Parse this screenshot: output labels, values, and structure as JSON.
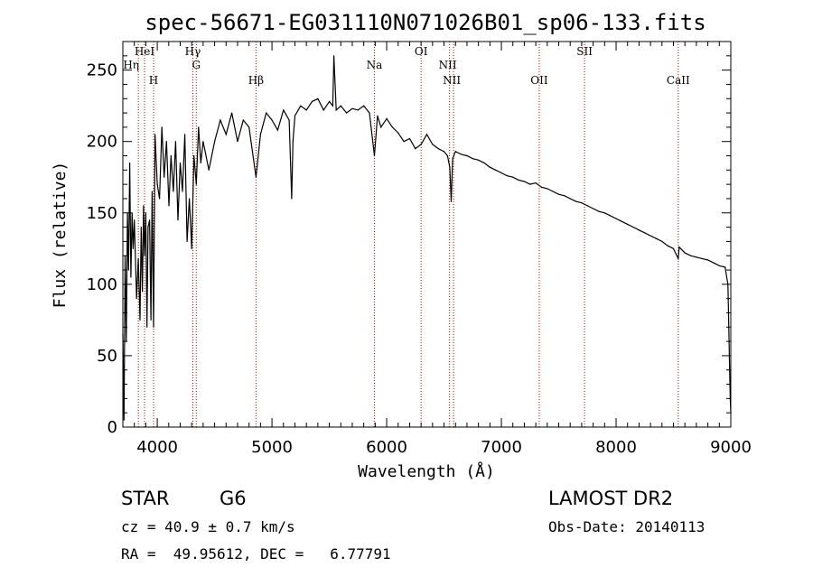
{
  "chart_data": {
    "type": "line",
    "title": "spec-56671-EG031110N071026B01_sp06-133.fits",
    "xlabel": "Wavelength (Å)",
    "ylabel": "Flux (relative)",
    "xlim": [
      3700,
      9000
    ],
    "ylim": [
      0,
      270
    ],
    "grid": false,
    "x_ticks": [
      4000,
      5000,
      6000,
      7000,
      8000,
      9000
    ],
    "y_ticks": [
      0,
      50,
      100,
      150,
      200,
      250
    ],
    "series": [
      {
        "x": [
          3700,
          3710,
          3720,
          3730,
          3740,
          3750,
          3760,
          3770,
          3780,
          3790,
          3800,
          3820,
          3835,
          3850,
          3860,
          3870,
          3880,
          3889,
          3900,
          3910,
          3920,
          3933,
          3945,
          3955,
          3968,
          3980,
          4000,
          4020,
          4040,
          4060,
          4080,
          4102,
          4120,
          4140,
          4160,
          4180,
          4200,
          4220,
          4240,
          4260,
          4280,
          4300,
          4320,
          4340,
          4360,
          4380,
          4400,
          4450,
          4500,
          4550,
          4600,
          4650,
          4700,
          4750,
          4800,
          4861,
          4900,
          4950,
          5000,
          5050,
          5100,
          5150,
          5172,
          5183,
          5200,
          5250,
          5300,
          5350,
          5400,
          5450,
          5500,
          5530,
          5540,
          5560,
          5600,
          5650,
          5700,
          5750,
          5800,
          5850,
          5893,
          5920,
          5950,
          6000,
          6050,
          6100,
          6150,
          6200,
          6250,
          6300,
          6350,
          6400,
          6450,
          6500,
          6530,
          6550,
          6563,
          6575,
          6600,
          6650,
          6700,
          6750,
          6800,
          6850,
          6900,
          6950,
          7000,
          7050,
          7100,
          7150,
          7200,
          7250,
          7300,
          7350,
          7400,
          7450,
          7500,
          7550,
          7600,
          7650,
          7700,
          7750,
          7800,
          7850,
          7900,
          7950,
          8000,
          8050,
          8100,
          8150,
          8200,
          8250,
          8300,
          8350,
          8400,
          8450,
          8500,
          8542,
          8550,
          8600,
          8650,
          8700,
          8750,
          8800,
          8850,
          8900,
          8950,
          8975,
          8985,
          8990,
          8995,
          9000
        ],
        "y": [
          65,
          5,
          120,
          60,
          150,
          110,
          185,
          105,
          150,
          125,
          145,
          90,
          118,
          75,
          140,
          95,
          155,
          120,
          150,
          70,
          140,
          145,
          75,
          165,
          70,
          205,
          170,
          160,
          210,
          175,
          200,
          155,
          190,
          165,
          200,
          145,
          185,
          165,
          205,
          130,
          160,
          125,
          190,
          170,
          210,
          185,
          200,
          180,
          200,
          215,
          205,
          220,
          200,
          215,
          210,
          175,
          205,
          220,
          215,
          208,
          222,
          215,
          160,
          200,
          218,
          225,
          222,
          228,
          230,
          222,
          228,
          225,
          260,
          222,
          225,
          220,
          223,
          222,
          225,
          220,
          190,
          218,
          210,
          216,
          210,
          206,
          200,
          202,
          195,
          198,
          205,
          198,
          195,
          193,
          190,
          182,
          158,
          188,
          193,
          191,
          190,
          188,
          187,
          185,
          182,
          180,
          178,
          176,
          175,
          173,
          172,
          170,
          171,
          168,
          167,
          165,
          163,
          162,
          160,
          158,
          157,
          155,
          153,
          151,
          150,
          148,
          146,
          144,
          142,
          140,
          138,
          136,
          134,
          132,
          130,
          127,
          125,
          118,
          126,
          122,
          120,
          119,
          118,
          117,
          115,
          113,
          112,
          100,
          60,
          40,
          20,
          10
        ]
      }
    ],
    "lines": [
      {
        "name": "Hη",
        "x": 3835
      },
      {
        "name": "HeI",
        "x": 3889
      },
      {
        "name": "H",
        "x": 3968
      },
      {
        "name": "Hγ",
        "x": 4310
      },
      {
        "name": "G",
        "x": 4340
      },
      {
        "name": "Hβ",
        "x": 4861
      },
      {
        "name": "Na",
        "x": 5893
      },
      {
        "name": "OI",
        "x": 6300
      },
      {
        "name": "NII",
        "x": 6548
      },
      {
        "name": "NII",
        "x": 6583
      },
      {
        "name": "OII",
        "x": 7330
      },
      {
        "name": "SII",
        "x": 7725
      },
      {
        "name": "CaII",
        "x": 8542
      }
    ]
  },
  "info": {
    "class_label": "STAR",
    "subclass": "G6",
    "survey": "LAMOST DR2",
    "cz_line": "cz = 40.9 ± 0.7 km/s",
    "obs_date": "Obs-Date: 20140113",
    "radec_line": "RA =  49.95612, DEC =   6.77791"
  }
}
